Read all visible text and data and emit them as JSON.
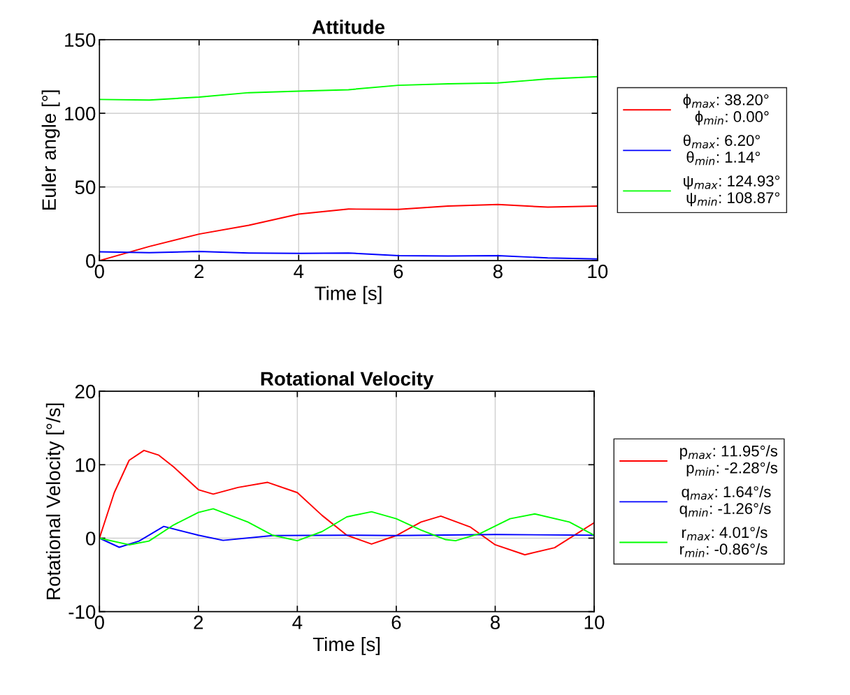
{
  "chart_data": [
    {
      "type": "line",
      "title": "Attitude",
      "xlabel": "Time [s]",
      "ylabel": "Euler angle [°]",
      "xlim": [
        0,
        10
      ],
      "ylim": [
        0,
        150
      ],
      "xticks": [
        0,
        2,
        4,
        6,
        8,
        10
      ],
      "yticks": [
        0,
        50,
        100,
        150
      ],
      "grid": true,
      "legend": "right",
      "marker": "none",
      "line_style": "solid",
      "x": [
        0,
        1,
        2,
        3,
        4,
        5,
        6,
        7,
        8,
        9,
        10
      ],
      "series": [
        {
          "name": "ϕ$_{max}$: 38.20°\nϕ$_{min}$: 0.00°",
          "color": "#ff0000",
          "values": [
            0,
            9.6,
            18,
            24,
            31.6,
            35,
            34.8,
            37,
            38.1,
            36.3,
            37
          ]
        },
        {
          "name": "θ$_{max}$: 6.20°\nθ$_{min}$: 1.14°",
          "color": "#0000ff",
          "values": [
            6.0,
            5.4,
            6.2,
            5.2,
            4.9,
            5.2,
            3.4,
            3.1,
            3.4,
            1.8,
            1.14
          ]
        },
        {
          "name": "ψ$_{max}$: 124.93°\nψ$_{min}$: 108.87°",
          "color": "#00ff00",
          "values": [
            109.4,
            109,
            111,
            114,
            115,
            116,
            119,
            120,
            120.6,
            123.3,
            124.9
          ]
        }
      ]
    },
    {
      "type": "line",
      "title": "Rotational Velocity",
      "xlabel": "Time [s]",
      "ylabel": "Rotational Velocity [°/s]",
      "xlim": [
        0,
        10
      ],
      "ylim": [
        -10,
        20
      ],
      "xticks": [
        0,
        2,
        4,
        6,
        8,
        10
      ],
      "yticks": [
        -10,
        0,
        10,
        20
      ],
      "grid": true,
      "legend": "right",
      "marker": "none",
      "line_style": "solid",
      "series": [
        {
          "name": "p$_{max}$: 11.95°/s\np$_{min}$: -2.28°/s",
          "color": "#ff0000",
          "x": [
            0,
            0.3,
            0.6,
            0.9,
            1.2,
            1.5,
            2,
            2.3,
            2.8,
            3.4,
            4,
            4.5,
            5,
            5.5,
            6,
            6.5,
            6.9,
            7.5,
            8,
            8.6,
            9.2,
            10
          ],
          "values": [
            0,
            6.2,
            10.6,
            11.95,
            11.3,
            9.7,
            6.6,
            6.0,
            6.9,
            7.6,
            6.2,
            3.1,
            0.4,
            -0.8,
            0.35,
            2.2,
            3.0,
            1.5,
            -0.9,
            -2.26,
            -1.3,
            2.1
          ]
        },
        {
          "name": "q$_{max}$: 1.64°/s\nq$_{min}$: -1.26°/s",
          "color": "#0000ff",
          "x": [
            0,
            0.4,
            0.8,
            1.3,
            2,
            2.5,
            3.5,
            5,
            6,
            8,
            10
          ],
          "values": [
            0,
            -1.24,
            -0.4,
            1.6,
            0.4,
            -0.3,
            0.35,
            0.4,
            0.35,
            0.5,
            0.4
          ]
        },
        {
          "name": "r$_{max}$: 4.01°/s\nr$_{min}$: -0.86°/s",
          "color": "#00ff00",
          "x": [
            0,
            0.6,
            1,
            1.5,
            2,
            2.3,
            3,
            3.5,
            4,
            4.5,
            5,
            5.5,
            6,
            6.5,
            7,
            7.2,
            7.7,
            8.3,
            8.8,
            9.5,
            10
          ],
          "values": [
            0,
            -0.9,
            -0.4,
            1.8,
            3.5,
            4.0,
            2.2,
            0.4,
            -0.35,
            0.9,
            2.9,
            3.6,
            2.65,
            1.1,
            -0.2,
            -0.35,
            0.65,
            2.65,
            3.3,
            2.2,
            0.4
          ]
        }
      ]
    }
  ]
}
